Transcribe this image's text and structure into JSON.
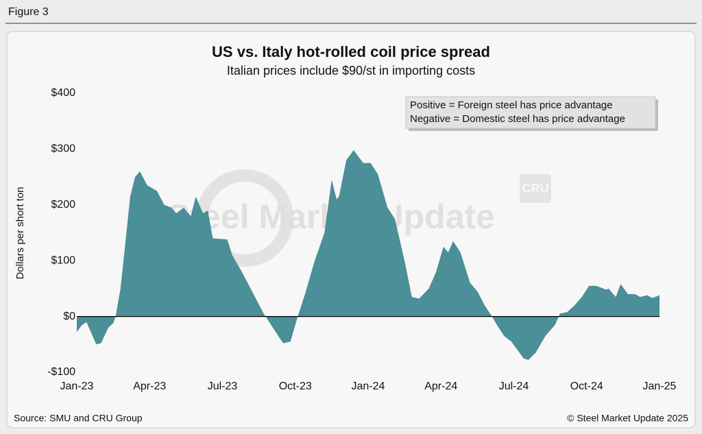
{
  "figure_label": "Figure 3",
  "chart_data": {
    "type": "area",
    "title": "US vs. Italy hot-rolled coil price spread",
    "subtitle": "Italian prices include $90/st in importing costs",
    "y_label": "Dollars per short ton",
    "annotations": [
      "Positive = Foreign steel has price advantage",
      "Negative = Domestic steel has price advantage"
    ],
    "watermark": "Steel Market Update",
    "logo": "CRU",
    "source": "Source: SMU and CRU Group",
    "copyright": "© Steel Market Update 2025",
    "color": "#4b8f98",
    "x": [
      0,
      0.2,
      0.4,
      0.8,
      1.0,
      1.3,
      1.5,
      1.6,
      1.8,
      1.9,
      2.2,
      2.4,
      2.6,
      2.9,
      3.3,
      3.6,
      3.9,
      4.1,
      4.4,
      4.7,
      4.9,
      5.2,
      5.4,
      5.6,
      6.2,
      6.4,
      6.8,
      7.1,
      7.4,
      7.7,
      8.0,
      8.3,
      8.5,
      8.8,
      9.1,
      9.4,
      9.8,
      10.2,
      10.5,
      10.7,
      10.8,
      11.1,
      11.4,
      11.8,
      12.1,
      12.4,
      12.8,
      13.1,
      13.5,
      13.8,
      14.1,
      14.5,
      14.8,
      15.1,
      15.3,
      15.5,
      15.8,
      16.2,
      16.5,
      16.8,
      17.1,
      17.3,
      17.6,
      17.9,
      18.4,
      18.6,
      18.9,
      19.3,
      19.7,
      19.9,
      20.2,
      20.5,
      20.8,
      21.1,
      21.4,
      21.8,
      21.9,
      22.2,
      22.4,
      22.7,
      23.0,
      23.2,
      23.5,
      23.7,
      24.0
    ],
    "values": [
      -28,
      -16,
      -10,
      -50,
      -48,
      -20,
      -12,
      0,
      50,
      90,
      215,
      250,
      260,
      235,
      225,
      200,
      195,
      185,
      195,
      180,
      215,
      185,
      190,
      140,
      138,
      110,
      80,
      55,
      30,
      5,
      -15,
      -35,
      -48,
      -45,
      0,
      40,
      100,
      150,
      245,
      210,
      215,
      280,
      298,
      275,
      275,
      255,
      195,
      175,
      100,
      35,
      32,
      50,
      80,
      125,
      115,
      135,
      115,
      60,
      45,
      20,
      0,
      -15,
      -35,
      -45,
      -75,
      -78,
      -65,
      -35,
      -15,
      5,
      8,
      20,
      35,
      55,
      55,
      48,
      50,
      35,
      58,
      40,
      40,
      35,
      38,
      33,
      38
    ],
    "xlim": [
      0,
      24
    ],
    "xticks": [
      {
        "value": 0,
        "label": "Jan-23"
      },
      {
        "value": 3,
        "label": "Apr-23"
      },
      {
        "value": 6,
        "label": "Jul-23"
      },
      {
        "value": 9,
        "label": "Oct-23"
      },
      {
        "value": 12,
        "label": "Jan-24"
      },
      {
        "value": 15,
        "label": "Apr-24"
      },
      {
        "value": 18,
        "label": "Jul-24"
      },
      {
        "value": 21,
        "label": "Oct-24"
      },
      {
        "value": 24,
        "label": "Jan-25"
      }
    ],
    "ylim": [
      -100,
      400
    ],
    "yticks": [
      {
        "value": -100,
        "label": "-$100"
      },
      {
        "value": 0,
        "label": "$0"
      },
      {
        "value": 100,
        "label": "$100"
      },
      {
        "value": 200,
        "label": "$200"
      },
      {
        "value": 300,
        "label": "$300"
      },
      {
        "value": 400,
        "label": "$400"
      }
    ],
    "grid": false
  }
}
